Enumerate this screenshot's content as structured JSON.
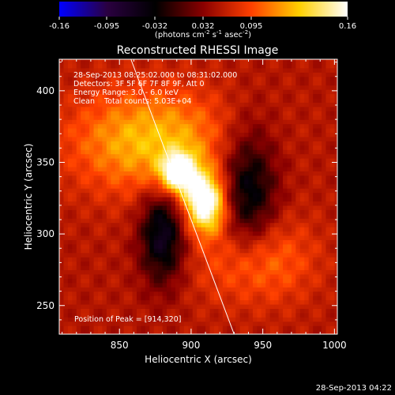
{
  "colorbar": {
    "ticks": [
      "-0.16",
      "-0.095",
      "-0.032",
      "0.032",
      "0.095",
      "0.16"
    ],
    "unit_label": "(photons cm",
    "unit_sup1": "-2",
    "unit_mid": " s",
    "unit_sup2": "-1",
    "unit_tail": " asec",
    "unit_sup3": "-2",
    "unit_close": ")"
  },
  "annotations": {
    "time_range": "28-Sep-2013 08:25:02.000 to 08:31:02.000",
    "detectors": "Detectors: 3F 5F 6F 7F 8F 9F, Att 0",
    "energy": "Energy Range: 3.0 - 6.0 keV",
    "clean": "Clean    Total counts: 5.03E+04",
    "peak": "Position of Peak = [914,320]"
  },
  "footer": {
    "timestamp": "28-Sep-2013 04:22"
  },
  "chart_data": {
    "type": "heatmap",
    "title": "Reconstructed RHESSI Image",
    "xlabel": "Heliocentric X (arcsec)",
    "ylabel": "Heliocentric Y (arcsec)",
    "xlim": [
      808,
      1002
    ],
    "ylim": [
      230,
      422
    ],
    "xticks": [
      "850",
      "900",
      "950",
      "1000"
    ],
    "yticks": [
      "250",
      "300",
      "350",
      "400"
    ],
    "xtick_values": [
      850,
      900,
      950,
      1000
    ],
    "ytick_values": [
      250,
      300,
      350,
      400
    ],
    "color_range": [
      -0.16,
      0.16
    ],
    "colormap": [
      "#0000ff",
      "#2a0040",
      "#000000",
      "#8a0000",
      "#ff4000",
      "#ffd000",
      "#ffffff"
    ],
    "peak": [
      914,
      320
    ],
    "sources": [
      {
        "x": 891,
        "y": 343,
        "amplitude": 0.145,
        "sx": 9,
        "sy": 10
      },
      {
        "x": 910,
        "y": 322,
        "amplitude": 0.16,
        "sx": 10,
        "sy": 14
      },
      {
        "x": 872,
        "y": 365,
        "amplitude": 0.085,
        "sx": 40,
        "sy": 26
      },
      {
        "x": 945,
        "y": 282,
        "amplitude": 0.06,
        "sx": 28,
        "sy": 22
      },
      {
        "x": 880,
        "y": 300,
        "amplitude": -0.1,
        "sx": 11,
        "sy": 24
      },
      {
        "x": 940,
        "y": 330,
        "amplitude": -0.09,
        "sx": 14,
        "sy": 32
      }
    ],
    "limb_line": [
      [
        858,
        422
      ],
      [
        930,
        230
      ]
    ]
  }
}
